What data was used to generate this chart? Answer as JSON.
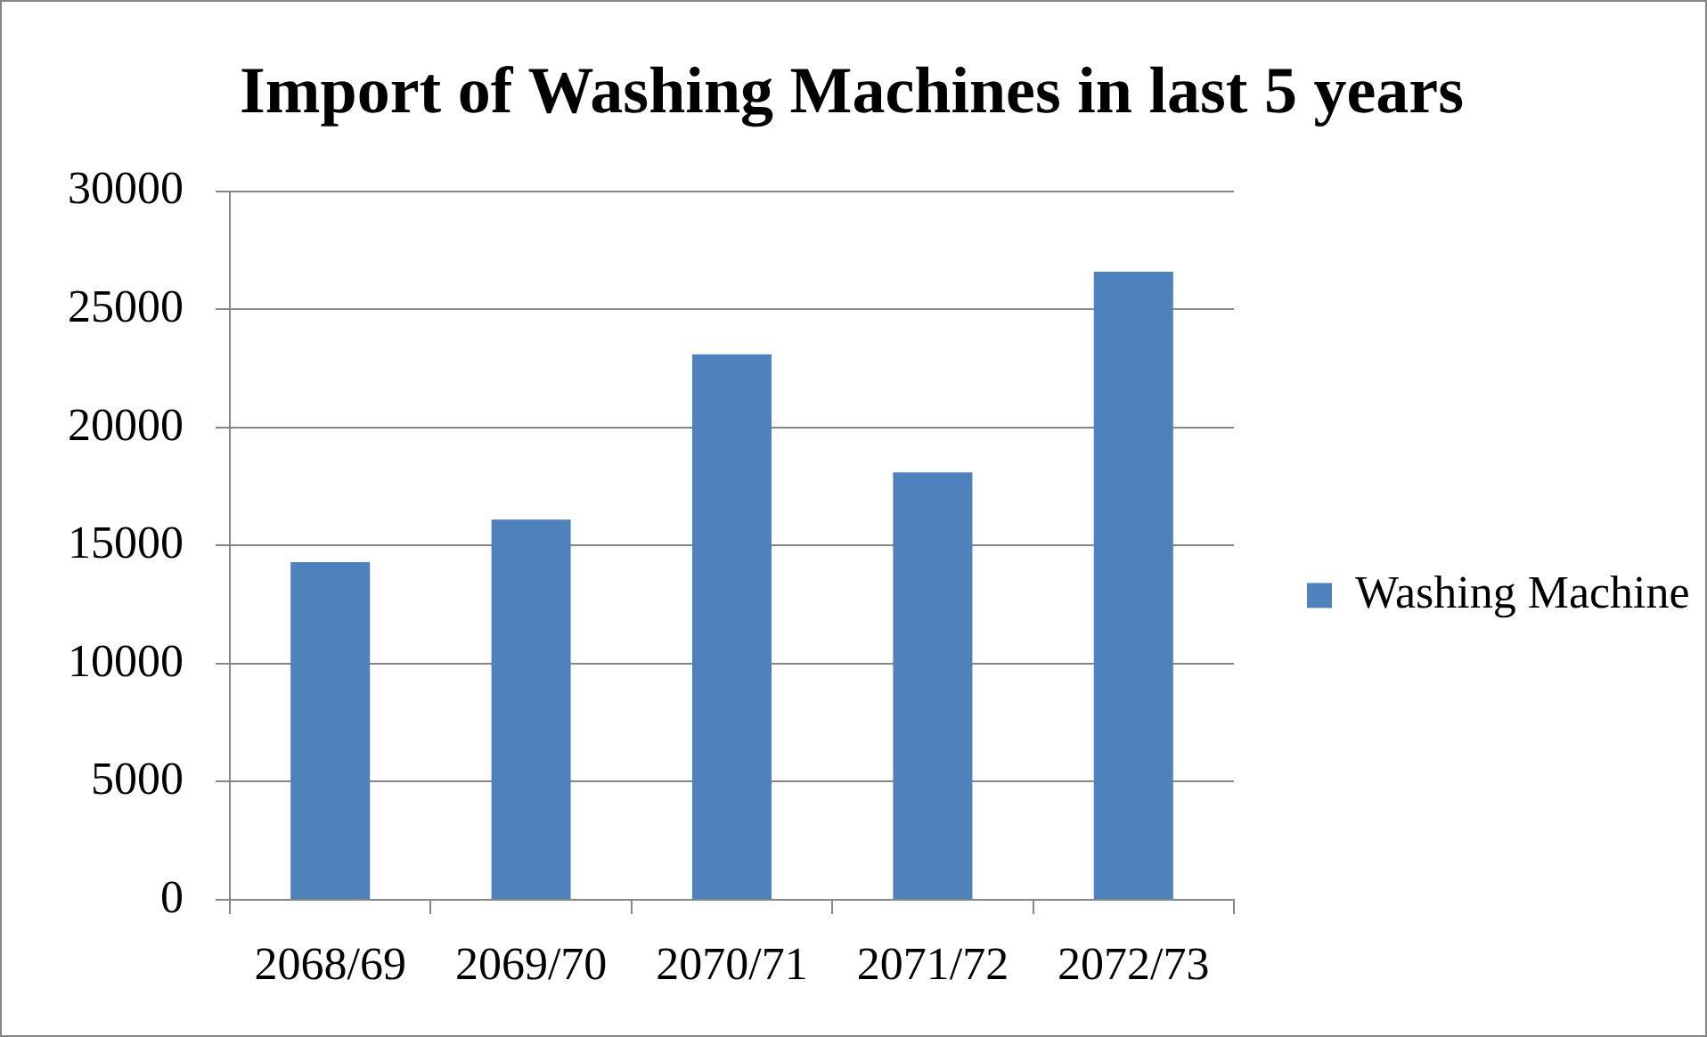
{
  "chart_data": {
    "type": "bar",
    "title": "Import of Washing Machines in last 5 years",
    "categories": [
      "2068/69",
      "2069/70",
      "2070/71",
      "2071/72",
      "2072/73"
    ],
    "series": [
      {
        "name": "Washing Machine",
        "color": "#4f81bd",
        "values": [
          14300,
          16100,
          23100,
          18100,
          26600
        ]
      }
    ],
    "ylim": [
      0,
      30000
    ],
    "yticks": [
      0,
      5000,
      10000,
      15000,
      20000,
      25000,
      30000
    ],
    "grid": "y",
    "legend": "right"
  }
}
